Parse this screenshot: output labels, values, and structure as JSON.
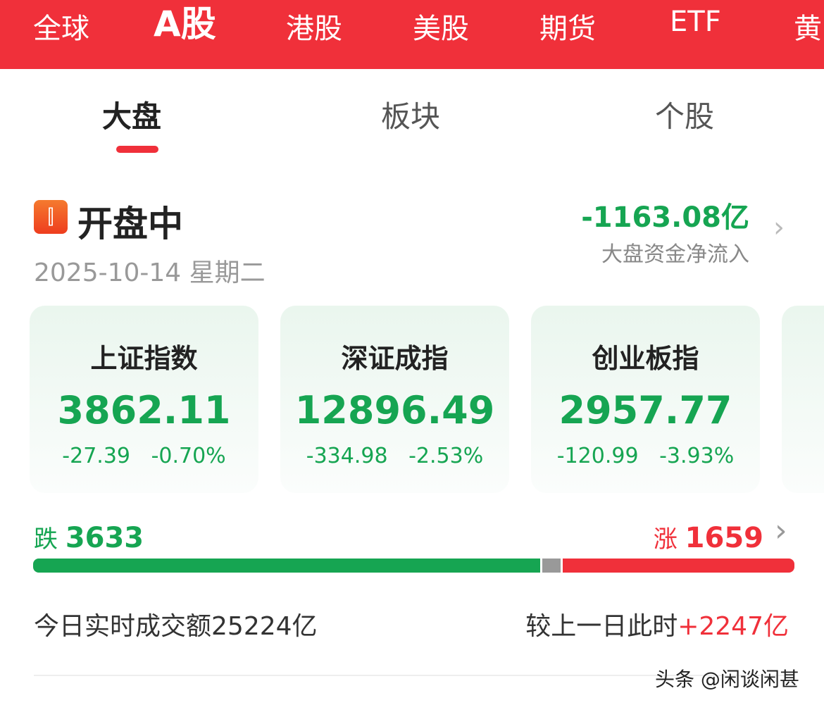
{
  "top_tabs": [
    "全球",
    "A股",
    "港股",
    "美股",
    "期货",
    "ETF",
    "黄"
  ],
  "top_active": 1,
  "sub_tabs": [
    "大盘",
    "板块",
    "个股"
  ],
  "sub_active": 0,
  "status": {
    "label": "开盘中",
    "date": "2025-10-14",
    "weekday": "星期二",
    "icon": "candlestick-icon"
  },
  "net_flow": {
    "value": "-1163.08亿",
    "label": "大盘资金净流入"
  },
  "indices": [
    {
      "name": "上证指数",
      "value": "3862.11",
      "change": "-27.39",
      "pct": "-0.70%"
    },
    {
      "name": "深证成指",
      "value": "12896.49",
      "change": "-334.98",
      "pct": "-2.53%"
    },
    {
      "name": "创业板指",
      "value": "2957.77",
      "change": "-120.99",
      "pct": "-3.93%"
    }
  ],
  "breadth": {
    "down_label": "跌",
    "down": 3633,
    "up_label": "涨",
    "up": 1659
  },
  "turnover": {
    "label": "今日实时成交额",
    "value": "25224亿",
    "compare_label": "较上一日此时",
    "compare_value": "+2247亿"
  },
  "watermark": "头条 @闲谈闲甚",
  "colors": {
    "brand": "#f0303a",
    "down": "#16a552",
    "flat": "#999999"
  }
}
